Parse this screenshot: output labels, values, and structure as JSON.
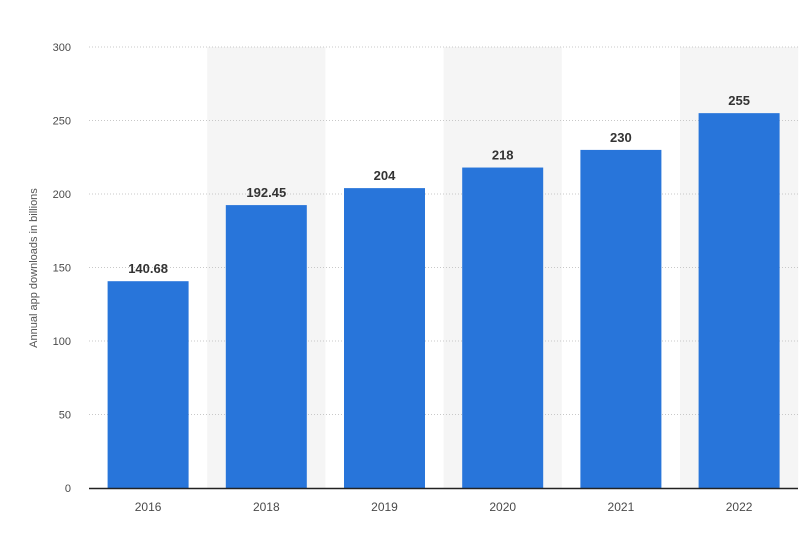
{
  "colors": {
    "bar": "#2875da",
    "band": "#f5f5f5",
    "grid": "#c8c8c8",
    "axis": "#222222"
  },
  "chart_data": {
    "type": "bar",
    "title": "",
    "xlabel": "",
    "ylabel": "Annual app downloads in billions",
    "categories": [
      "2016",
      "2018",
      "2019",
      "2020",
      "2021",
      "2022"
    ],
    "values": [
      140.68,
      192.45,
      204,
      218,
      230,
      255
    ],
    "value_labels": [
      "140.68",
      "192.45",
      "204",
      "218",
      "230",
      "255"
    ],
    "ylim": [
      0,
      300
    ],
    "yticks": [
      0,
      50,
      100,
      150,
      200,
      250,
      300
    ],
    "ytick_labels": [
      "0",
      "50",
      "100",
      "150",
      "200",
      "250",
      "300"
    ],
    "grid": true,
    "legend": false
  }
}
